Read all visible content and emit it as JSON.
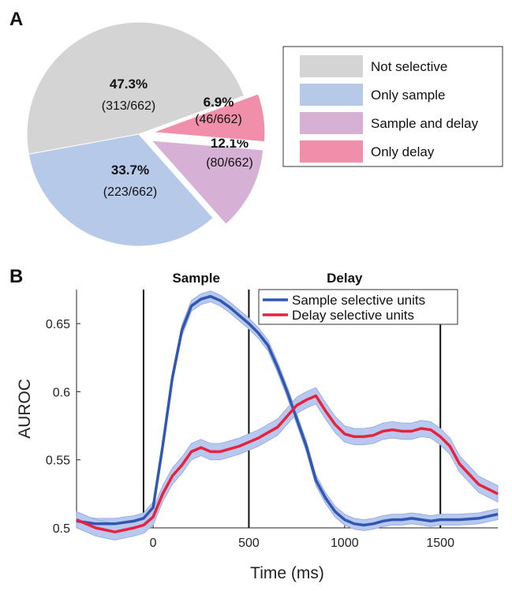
{
  "panel_a_label": "A",
  "panel_b_label": "B",
  "chart_data": [
    {
      "type": "pie",
      "slices": [
        {
          "label": "Not selective",
          "value": 47.3,
          "pct_text": "47.3%",
          "count_text": "(313/662)",
          "color": "#d4d4d4"
        },
        {
          "label": "Only sample",
          "value": 33.7,
          "pct_text": "33.7%",
          "count_text": "(223/662)",
          "color": "#b7c9e8"
        },
        {
          "label": "Sample and delay",
          "value": 12.1,
          "pct_text": "12.1%",
          "count_text": "(80/662)",
          "color": "#d7b0d6"
        },
        {
          "label": "Only delay",
          "value": 6.9,
          "pct_text": "6.9%",
          "count_text": "(46/662)",
          "color": "#f18fab"
        }
      ],
      "exploded": [
        "Sample and delay",
        "Only delay"
      ],
      "legend": [
        "Not selective",
        "Only sample",
        "Sample and delay",
        "Only delay"
      ],
      "legend_placement": "right"
    },
    {
      "type": "line",
      "xlabel": "Time (ms)",
      "ylabel": "AUROC",
      "xlim": [
        -400,
        1800
      ],
      "ylim": [
        0.5,
        0.675
      ],
      "xticks": [
        0,
        500,
        1000,
        1500
      ],
      "yticks": [
        0.5,
        0.55,
        0.6,
        0.65
      ],
      "xtick_labels": [
        "0",
        "500",
        "1000",
        "1500"
      ],
      "ytick_labels": [
        "0.5",
        "0.55",
        "0.6",
        "0.65"
      ],
      "vlines": [
        -50,
        500,
        1500
      ],
      "period_labels": [
        {
          "text": "Sample",
          "x": 225
        },
        {
          "text": "Delay",
          "x": 1000
        }
      ],
      "legend_placement": "top-right",
      "band_color": "#b9c8ee",
      "series": [
        {
          "name": "Sample selective units",
          "color": "#2f57b3",
          "x": [
            -400,
            -300,
            -200,
            -100,
            -50,
            0,
            50,
            100,
            150,
            200,
            250,
            300,
            350,
            400,
            450,
            500,
            550,
            600,
            650,
            700,
            750,
            800,
            850,
            900,
            950,
            1000,
            1050,
            1100,
            1150,
            1200,
            1250,
            1300,
            1350,
            1400,
            1450,
            1500,
            1550,
            1600,
            1700,
            1800
          ],
          "y": [
            0.505,
            0.503,
            0.503,
            0.505,
            0.507,
            0.515,
            0.56,
            0.61,
            0.645,
            0.663,
            0.668,
            0.67,
            0.667,
            0.662,
            0.656,
            0.65,
            0.643,
            0.634,
            0.618,
            0.6,
            0.58,
            0.56,
            0.535,
            0.522,
            0.512,
            0.506,
            0.503,
            0.502,
            0.503,
            0.505,
            0.506,
            0.506,
            0.507,
            0.506,
            0.505,
            0.506,
            0.506,
            0.506,
            0.507,
            0.51
          ],
          "ci": 0.004
        },
        {
          "name": "Delay selective units",
          "color": "#e8223c",
          "x": [
            -400,
            -300,
            -200,
            -100,
            -50,
            0,
            50,
            100,
            150,
            200,
            250,
            300,
            350,
            400,
            450,
            500,
            550,
            600,
            650,
            700,
            750,
            800,
            850,
            900,
            950,
            1000,
            1050,
            1100,
            1150,
            1200,
            1250,
            1300,
            1350,
            1400,
            1450,
            1500,
            1550,
            1600,
            1700,
            1800
          ],
          "y": [
            0.506,
            0.5,
            0.497,
            0.5,
            0.502,
            0.508,
            0.525,
            0.538,
            0.546,
            0.556,
            0.559,
            0.556,
            0.556,
            0.558,
            0.56,
            0.563,
            0.566,
            0.57,
            0.574,
            0.582,
            0.59,
            0.594,
            0.597,
            0.586,
            0.576,
            0.569,
            0.567,
            0.567,
            0.568,
            0.571,
            0.572,
            0.571,
            0.571,
            0.573,
            0.572,
            0.567,
            0.56,
            0.547,
            0.532,
            0.525
          ],
          "ci": 0.006
        }
      ]
    }
  ]
}
